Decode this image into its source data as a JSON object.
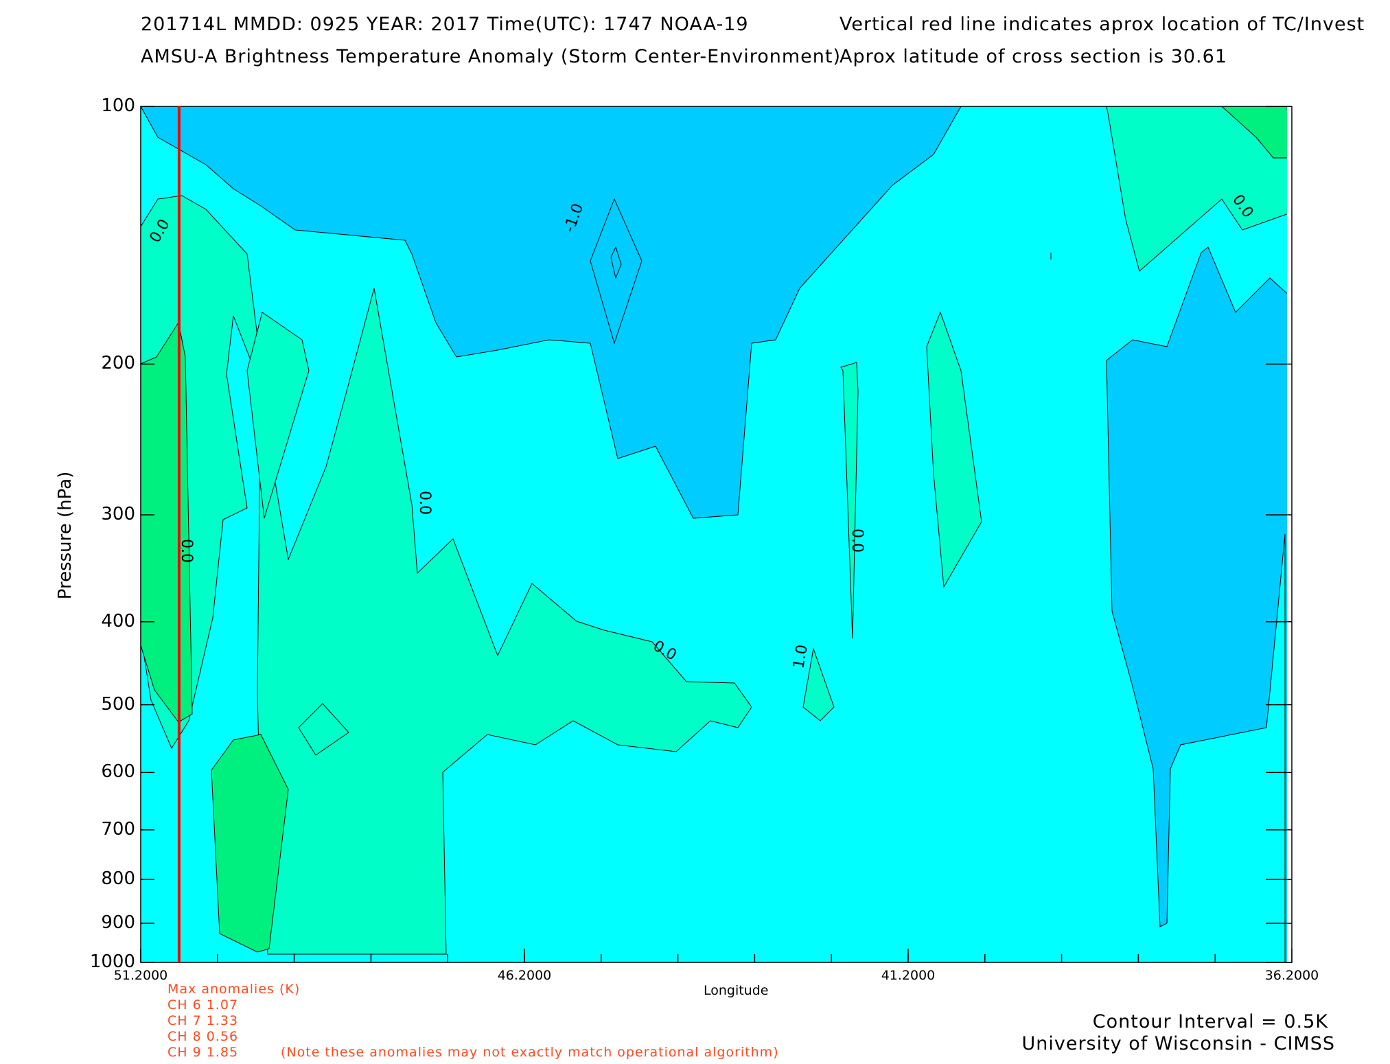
{
  "header": {
    "line1_left": "201714L  MMDD: 0925 YEAR: 2017 Time(UTC): 1747 NOAA-19",
    "line2_left": "AMSU-A Brightness Temperature Anomaly (Storm Center-Environment)",
    "line1_right": "Vertical red line indicates aprox location of TC/Invest",
    "line2_right": "Aprox latitude of cross section is 30.61"
  },
  "chart_data": {
    "type": "contour",
    "xlabel": "Longitude",
    "ylabel": "Pressure (hPa)",
    "x_ticks": [
      "51.2000",
      "46.2000",
      "41.2000",
      "36.2000"
    ],
    "x_range": [
      51.2,
      36.2
    ],
    "y_ticks": [
      "100",
      "200",
      "300",
      "400",
      "500",
      "600",
      "700",
      "800",
      "900",
      "1000"
    ],
    "y_range": [
      100,
      1000
    ],
    "storm_longitude": 50.7,
    "contour_labels": [
      "0.0",
      "-1.0",
      "0.0",
      "0.0",
      "0.0",
      "1.0",
      "0.0",
      "0.0"
    ],
    "colors": {
      "background_level": "#00ffff",
      "negative_level": "#00ccff",
      "positive_level": "#00ffc8",
      "strong_positive_level": "#00f080",
      "storm_line": "#ff0000"
    }
  },
  "anomalies": {
    "title": "Max anomalies (K)",
    "channels": [
      {
        "label": "CH 6  1.07"
      },
      {
        "label": "CH 7  1.33"
      },
      {
        "label": "CH 8  0.56"
      },
      {
        "label": "CH 9  1.85"
      }
    ],
    "note": "(Note these anomalies may not exactly match operational algorithm)"
  },
  "footer": {
    "contour_interval": "Contour Interval = 0.5K",
    "credit": "University of Wisconsin - CIMSS"
  }
}
